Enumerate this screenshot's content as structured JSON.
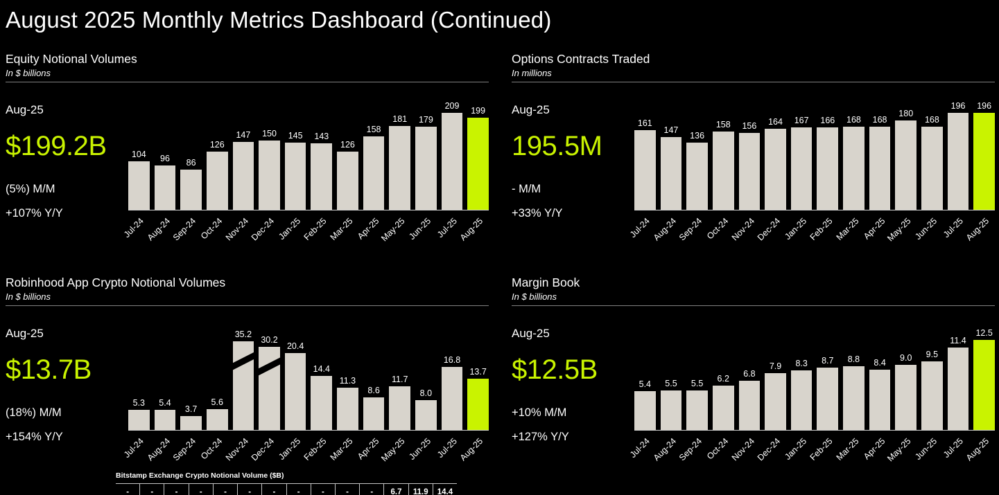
{
  "page": {
    "title": "August 2025 Monthly Metrics Dashboard (Continued)"
  },
  "colors": {
    "background": "#000000",
    "bar_default": "#d8d4cc",
    "bar_highlight": "#c9f300",
    "accent_text": "#c9f300",
    "text": "#ffffff",
    "divider": "#828282",
    "axis_line": "#cfcfcf"
  },
  "panels": [
    {
      "title": "Equity Notional Volumes",
      "subtitle": "In $ billions",
      "stat": {
        "period": "Aug-25",
        "value": "$199.2B",
        "mm": "(5%) M/M",
        "yy": "+107% Y/Y"
      }
    },
    {
      "title": "Options Contracts Traded",
      "subtitle": "In millions",
      "stat": {
        "period": "Aug-25",
        "value": "195.5M",
        "mm": "- M/M",
        "yy": "+33% Y/Y"
      }
    },
    {
      "title": "Robinhood App Crypto Notional Volumes",
      "subtitle": "In $ billions",
      "stat": {
        "period": "Aug-25",
        "value": "$13.7B",
        "mm": "(18%) M/M",
        "yy": "+154% Y/Y"
      }
    },
    {
      "title": "Margin Book",
      "subtitle": "In $ billions",
      "stat": {
        "period": "Aug-25",
        "value": "$12.5B",
        "mm": "+10% M/M",
        "yy": "+127% Y/Y"
      }
    }
  ],
  "chart_data": [
    {
      "type": "bar",
      "title": "Equity Notional Volumes",
      "ylabel": "In $ billions",
      "categories": [
        "Jul-24",
        "Aug-24",
        "Sep-24",
        "Oct-24",
        "Nov-24",
        "Dec-24",
        "Jan-25",
        "Feb-25",
        "Mar-25",
        "Apr-25",
        "May-25",
        "Jun-25",
        "Jul-25",
        "Aug-25"
      ],
      "values": [
        104,
        96,
        86,
        126,
        147,
        150,
        145,
        143,
        126,
        158,
        181,
        179,
        209,
        199
      ],
      "labels": [
        "104",
        "96",
        "86",
        "126",
        "147",
        "150",
        "145",
        "143",
        "126",
        "158",
        "181",
        "179",
        "209",
        "199"
      ],
      "ylim": [
        0,
        209
      ],
      "highlight_last": true,
      "grid": false,
      "legend": "none"
    },
    {
      "type": "bar",
      "title": "Options Contracts Traded",
      "ylabel": "In millions",
      "categories": [
        "Jul-24",
        "Aug-24",
        "Sep-24",
        "Oct-24",
        "Nov-24",
        "Dec-24",
        "Jan-25",
        "Feb-25",
        "Mar-25",
        "Apr-25",
        "May-25",
        "Jun-25",
        "Jul-25",
        "Aug-25"
      ],
      "values": [
        161,
        147,
        136,
        158,
        156,
        164,
        167,
        166,
        168,
        168,
        180,
        168,
        196,
        196
      ],
      "labels": [
        "161",
        "147",
        "136",
        "158",
        "156",
        "164",
        "167",
        "166",
        "168",
        "168",
        "180",
        "168",
        "196",
        "196"
      ],
      "ylim": [
        0,
        196
      ],
      "highlight_last": true,
      "grid": false,
      "legend": "none"
    },
    {
      "type": "bar",
      "title": "Robinhood App Crypto Notional Volumes",
      "ylabel": "In $ billions",
      "categories": [
        "Jul-24",
        "Aug-24",
        "Sep-24",
        "Oct-24",
        "Nov-24",
        "Dec-24",
        "Jan-25",
        "Feb-25",
        "Mar-25",
        "Apr-25",
        "May-25",
        "Jun-25",
        "Jul-25",
        "Aug-25"
      ],
      "values": [
        5.3,
        5.4,
        3.7,
        5.6,
        35.2,
        30.2,
        20.4,
        14.4,
        11.3,
        8.6,
        11.7,
        8.0,
        16.8,
        13.7
      ],
      "labels": [
        "5.3",
        "5.4",
        "3.7",
        "5.6",
        "35.2",
        "30.2",
        "20.4",
        "14.4",
        "11.3",
        "8.6",
        "11.7",
        "8.0",
        "16.8",
        "13.7"
      ],
      "ylim": [
        0,
        24
      ],
      "highlight_last": true,
      "grid": false,
      "legend": "none",
      "axis_break": {
        "indices": [
          4,
          5
        ],
        "display_values": [
          23.7,
          22.2
        ]
      },
      "footnote_table": {
        "title": "Bitstamp Exchange Crypto Notional Volume ($B)",
        "values": [
          "-",
          "-",
          "-",
          "-",
          "-",
          "-",
          "-",
          "-",
          "-",
          "-",
          "-",
          "6.7",
          "11.9",
          "14.4"
        ]
      }
    },
    {
      "type": "bar",
      "title": "Margin Book",
      "ylabel": "In $ billions",
      "categories": [
        "Jul-24",
        "Aug-24",
        "Sep-24",
        "Oct-24",
        "Nov-24",
        "Dec-24",
        "Jan-25",
        "Feb-25",
        "Mar-25",
        "Apr-25",
        "May-25",
        "Jun-25",
        "Jul-25",
        "Aug-25"
      ],
      "values": [
        5.4,
        5.5,
        5.5,
        6.2,
        6.8,
        7.9,
        8.3,
        8.7,
        8.8,
        8.4,
        9.0,
        9.5,
        11.4,
        12.5
      ],
      "labels": [
        "5.4",
        "5.5",
        "5.5",
        "6.2",
        "6.8",
        "7.9",
        "8.3",
        "8.7",
        "8.8",
        "8.4",
        "9.0",
        "9.5",
        "11.4",
        "12.5"
      ],
      "ylim": [
        0,
        12.5
      ],
      "highlight_last": true,
      "grid": false,
      "legend": "none"
    }
  ]
}
